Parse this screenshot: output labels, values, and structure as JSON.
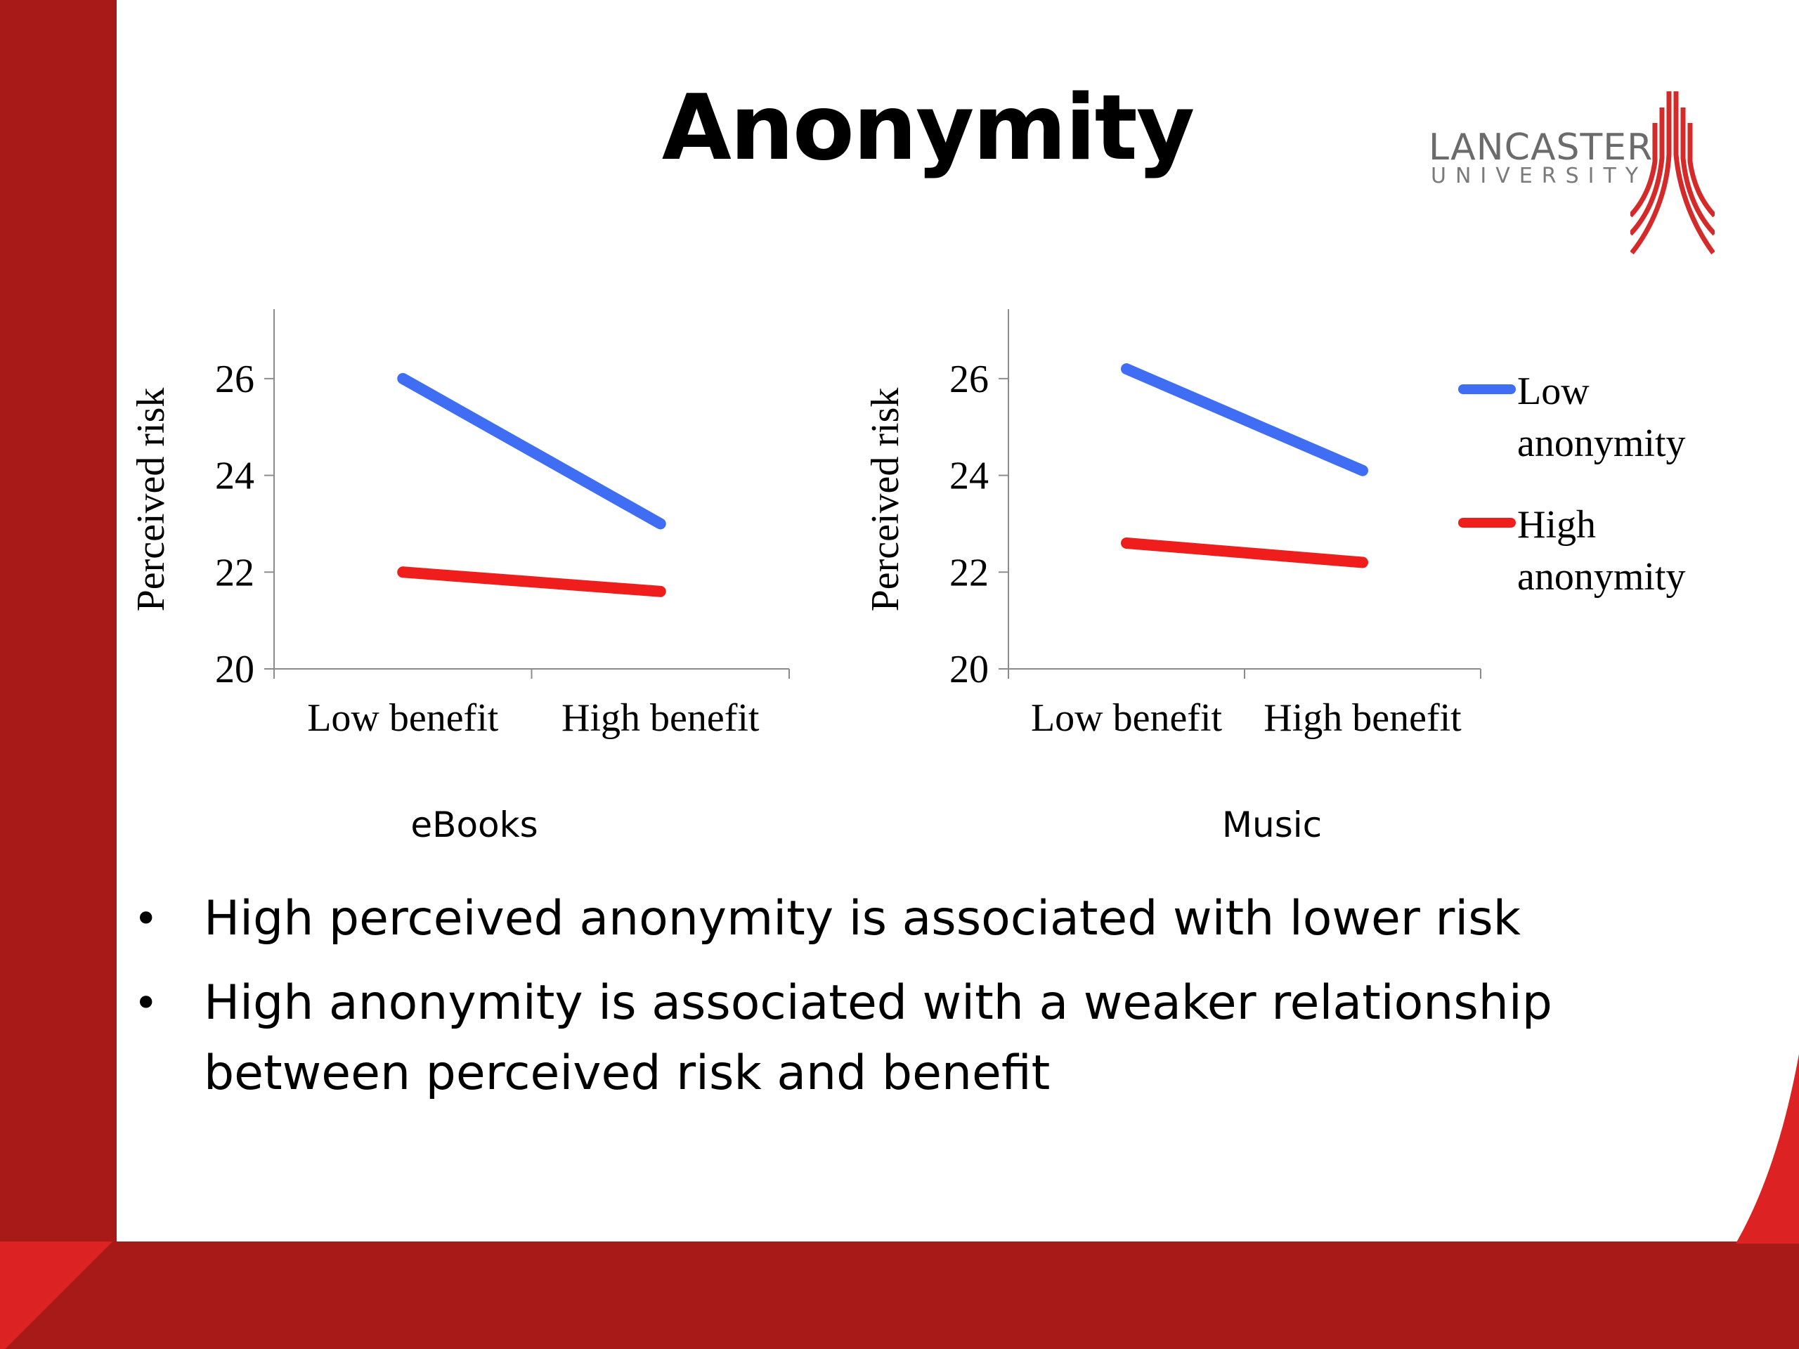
{
  "slide": {
    "title": "Anonymity",
    "logo": {
      "name": "LANCASTER",
      "subname": "UNIVERSITY"
    }
  },
  "colors": {
    "brand_red": "#a81a17",
    "accent_red": "#dc2222",
    "low_anonymity": "#3f6ef5",
    "high_anonymity": "#f01d1d"
  },
  "legend": {
    "low": "Low anonymity",
    "high": "High anonymity",
    "placement": "right"
  },
  "chart_data": [
    {
      "type": "line",
      "caption": "eBooks",
      "categories": [
        "Low benefit",
        "High benefit"
      ],
      "ylabel": "Perceived risk",
      "ylim": [
        20,
        27
      ],
      "yticks": [
        20,
        22,
        24,
        26
      ],
      "grid": false,
      "series": [
        {
          "name": "Low anonymity",
          "color": "#3f6ef5",
          "values": [
            26.0,
            23.0
          ]
        },
        {
          "name": "High anonymity",
          "color": "#f01d1d",
          "values": [
            22.0,
            21.6
          ]
        }
      ]
    },
    {
      "type": "line",
      "caption": "Music",
      "categories": [
        "Low benefit",
        "High benefit"
      ],
      "ylabel": "Perceived risk",
      "ylim": [
        20,
        27
      ],
      "yticks": [
        20,
        22,
        24,
        26
      ],
      "grid": false,
      "series": [
        {
          "name": "Low anonymity",
          "color": "#3f6ef5",
          "values": [
            26.2,
            24.1
          ]
        },
        {
          "name": "High anonymity",
          "color": "#f01d1d",
          "values": [
            22.6,
            22.2
          ]
        }
      ]
    }
  ],
  "bullets": [
    "High perceived anonymity is associated with lower risk",
    "High anonymity is associated with a weaker relationship between perceived risk and benefit"
  ]
}
